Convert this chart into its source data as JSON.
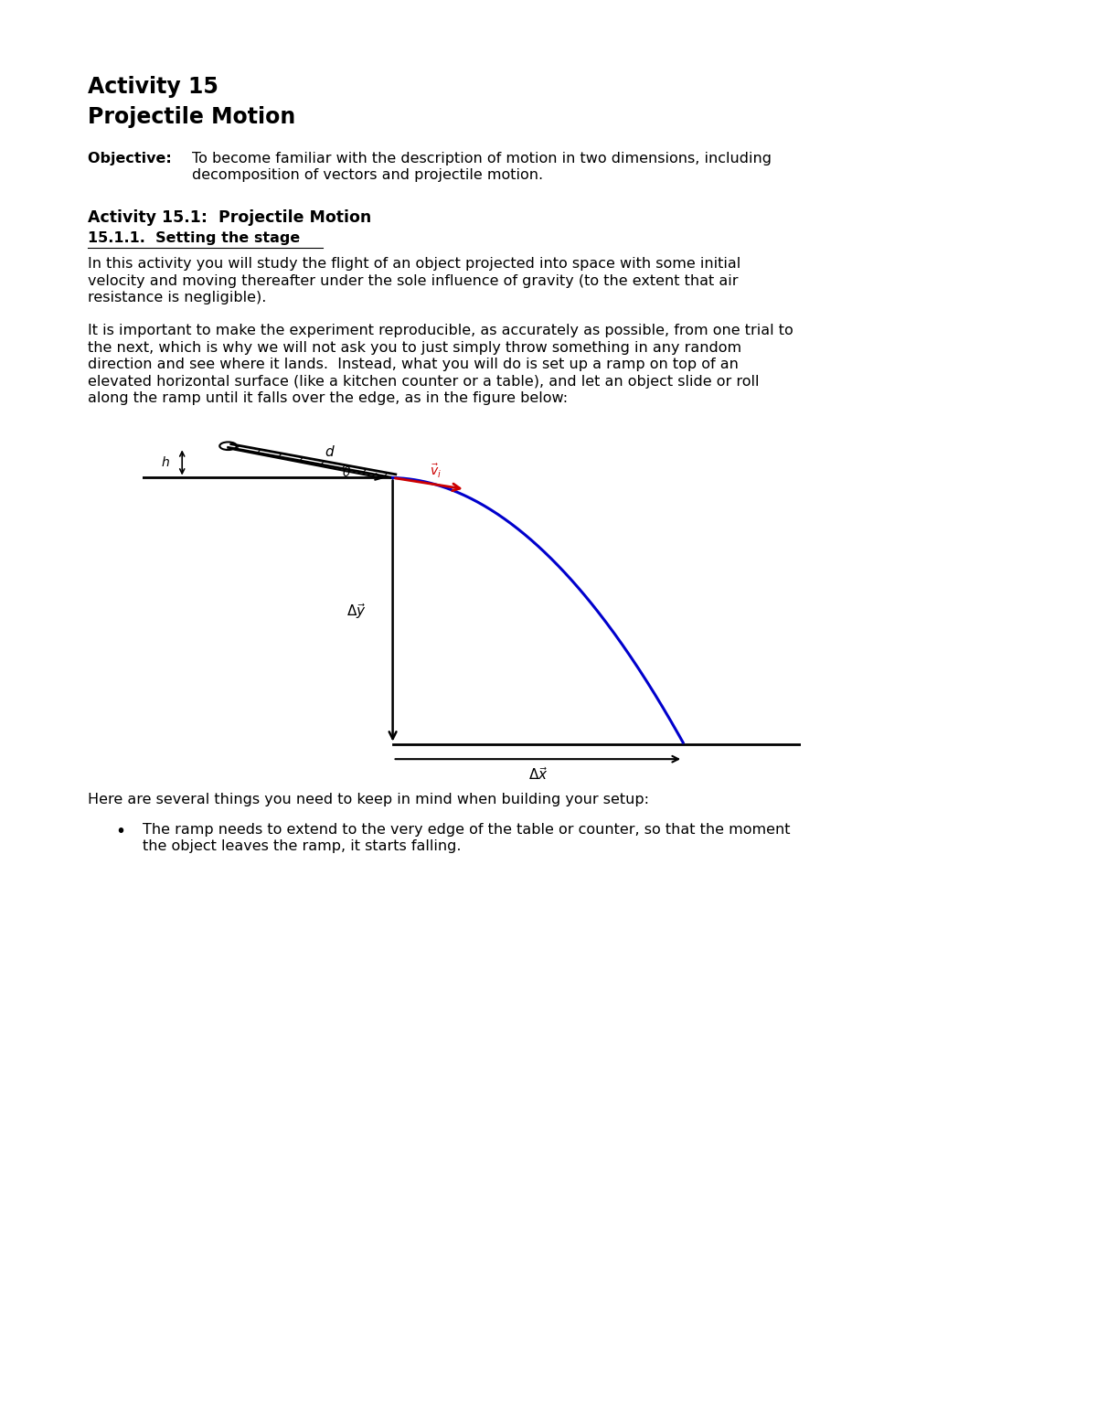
{
  "title_line1": "Activity 15",
  "title_line2": "Projectile Motion",
  "objective_label": "Objective: ",
  "objective_text": "To become familiar with the description of motion in two dimensions, including\ndecomposition of vectors and projectile motion.",
  "section_title": "Activity 15.1:  Projectile Motion",
  "subsection_title": "15.1.1.  Setting the stage",
  "para1": "In this activity you will study the flight of an object projected into space with some initial\nvelocity and moving thereafter under the sole influence of gravity (to the extent that air\nresistance is negligible).",
  "para2": "It is important to make the experiment reproducible, as accurately as possible, from one trial to\nthe next, which is why we will not ask you to just simply throw something in any random\ndirection and see where it lands.  Instead, what you will do is set up a ramp on top of an\nelevated horizontal surface (like a kitchen counter or a table), and let an object slide or roll\nalong the ramp until it falls over the edge, as in the figure below:",
  "bullet_intro": "Here are several things you need to keep in mind when building your setup:",
  "bullet1": "The ramp needs to extend to the very edge of the table or counter, so that the moment\nthe object leaves the ramp, it starts falling.",
  "bg_color": "#ffffff",
  "text_color": "#000000",
  "trajectory_color": "#0000cc",
  "arrow_color": "#cc0000",
  "font_size_title": 17,
  "font_size_section": 12.5,
  "font_size_body": 11.5
}
